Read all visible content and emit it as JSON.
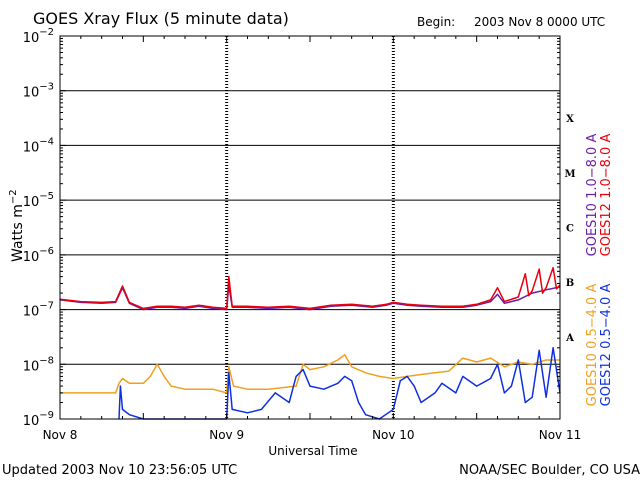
{
  "header": {
    "title": "GOES Xray Flux (5 minute data)",
    "begin_label": "Begin:",
    "begin_value": "2003 Nov 8 0000 UTC"
  },
  "footer": {
    "updated": "Updated 2003 Nov 10 23:56:05 UTC",
    "credit": "NOAA/SEC Boulder, CO USA"
  },
  "colors": {
    "goes10_long": "#6a1fa8",
    "goes12_long": "#e8000b",
    "goes10_short": "#f0a020",
    "goes12_short": "#1030e0",
    "grid": "#000000"
  },
  "chart_data": {
    "type": "line",
    "title": "GOES Xray Flux (5 minute data)",
    "xlabel": "Universal Time",
    "ylabel": "Watts m⁻²",
    "yscale": "log",
    "ylim": [
      1e-09,
      0.01
    ],
    "xlim": [
      0,
      72
    ],
    "x_unit": "hours since 2003 Nov 8 0000 UTC",
    "x_ticks": [
      {
        "x": 0,
        "label": "Nov 8"
      },
      {
        "x": 24,
        "label": "Nov 9"
      },
      {
        "x": 48,
        "label": "Nov 10"
      },
      {
        "x": 72,
        "label": "Nov 11"
      }
    ],
    "y_ticks": [
      {
        "exp": -2,
        "base": "10",
        "sup": "−2"
      },
      {
        "exp": -3,
        "base": "10",
        "sup": "−3"
      },
      {
        "exp": -4,
        "base": "10",
        "sup": "−4"
      },
      {
        "exp": -5,
        "base": "10",
        "sup": "−5"
      },
      {
        "exp": -6,
        "base": "10",
        "sup": "−6"
      },
      {
        "exp": -7,
        "base": "10",
        "sup": "−7"
      },
      {
        "exp": -8,
        "base": "10",
        "sup": "−8"
      },
      {
        "exp": -9,
        "base": "10",
        "sup": "−9"
      }
    ],
    "flare_classes": [
      {
        "label": "X",
        "exp": -3.5
      },
      {
        "label": "M",
        "exp": -4.5
      },
      {
        "label": "C",
        "exp": -5.5
      },
      {
        "label": "B",
        "exp": -6.5
      },
      {
        "label": "A",
        "exp": -7.5
      }
    ],
    "legend_right": [
      {
        "text": "GOES12 1.0−8.0 A",
        "color": "#e8000b"
      },
      {
        "text": "GOES10 1.0−8.0 A",
        "color": "#6a1fa8"
      },
      {
        "text": "GOES12 0.5−4.0 A",
        "color": "#1030e0"
      },
      {
        "text": "GOES10 0.5−4.0 A",
        "color": "#f0a020"
      }
    ],
    "series": [
      {
        "name": "GOES10 1.0-8.0 A",
        "color": "#6a1fa8",
        "points": [
          [
            0,
            1.5e-07
          ],
          [
            3,
            1.35e-07
          ],
          [
            6,
            1.3e-07
          ],
          [
            8,
            1.35e-07
          ],
          [
            9,
            2.5e-07
          ],
          [
            10,
            1.3e-07
          ],
          [
            12,
            1e-07
          ],
          [
            14,
            1.1e-07
          ],
          [
            16,
            1.1e-07
          ],
          [
            18,
            1.05e-07
          ],
          [
            20,
            1.15e-07
          ],
          [
            22,
            1.05e-07
          ],
          [
            24,
            1e-07
          ],
          [
            24.3,
            2.8e-07
          ],
          [
            24.8,
            1.1e-07
          ],
          [
            27,
            1.1e-07
          ],
          [
            30,
            1.05e-07
          ],
          [
            33,
            1.1e-07
          ],
          [
            36,
            1e-07
          ],
          [
            39,
            1.15e-07
          ],
          [
            42,
            1.2e-07
          ],
          [
            45,
            1.1e-07
          ],
          [
            47,
            1.2e-07
          ],
          [
            48,
            1.3e-07
          ],
          [
            50,
            1.2e-07
          ],
          [
            52,
            1.15e-07
          ],
          [
            55,
            1.1e-07
          ],
          [
            58,
            1.1e-07
          ],
          [
            60,
            1.2e-07
          ],
          [
            62,
            1.4e-07
          ],
          [
            63,
            1.9e-07
          ],
          [
            64,
            1.3e-07
          ],
          [
            66,
            1.5e-07
          ],
          [
            68,
            2e-07
          ],
          [
            70,
            2.3e-07
          ],
          [
            72,
            2.6e-07
          ]
        ]
      },
      {
        "name": "GOES12 1.0-8.0 A",
        "color": "#e8000b",
        "points": [
          [
            0,
            1.55e-07
          ],
          [
            3,
            1.4e-07
          ],
          [
            6,
            1.35e-07
          ],
          [
            8,
            1.4e-07
          ],
          [
            9,
            2.7e-07
          ],
          [
            10,
            1.35e-07
          ],
          [
            12,
            1.05e-07
          ],
          [
            14,
            1.15e-07
          ],
          [
            16,
            1.15e-07
          ],
          [
            18,
            1.1e-07
          ],
          [
            20,
            1.2e-07
          ],
          [
            22,
            1.1e-07
          ],
          [
            24,
            1.05e-07
          ],
          [
            24.3,
            4e-07
          ],
          [
            24.8,
            1.15e-07
          ],
          [
            27,
            1.15e-07
          ],
          [
            30,
            1.1e-07
          ],
          [
            33,
            1.15e-07
          ],
          [
            36,
            1.05e-07
          ],
          [
            39,
            1.2e-07
          ],
          [
            42,
            1.25e-07
          ],
          [
            45,
            1.15e-07
          ],
          [
            47,
            1.25e-07
          ],
          [
            48,
            1.35e-07
          ],
          [
            50,
            1.25e-07
          ],
          [
            52,
            1.2e-07
          ],
          [
            55,
            1.15e-07
          ],
          [
            58,
            1.15e-07
          ],
          [
            60,
            1.25e-07
          ],
          [
            62,
            1.5e-07
          ],
          [
            63,
            2.5e-07
          ],
          [
            64,
            1.4e-07
          ],
          [
            66,
            1.7e-07
          ],
          [
            67,
            4.5e-07
          ],
          [
            67.5,
            1.8e-07
          ],
          [
            68,
            2.2e-07
          ],
          [
            69,
            5.5e-07
          ],
          [
            69.5,
            2e-07
          ],
          [
            70,
            2.5e-07
          ],
          [
            71,
            5.8e-07
          ],
          [
            71.5,
            2.4e-07
          ],
          [
            72,
            2.8e-07
          ]
        ]
      },
      {
        "name": "GOES10 0.5-4.0 A",
        "color": "#f0a020",
        "points": [
          [
            0,
            3e-09
          ],
          [
            3,
            3e-09
          ],
          [
            6,
            3e-09
          ],
          [
            8,
            3e-09
          ],
          [
            8.5,
            4.5e-09
          ],
          [
            9,
            5.5e-09
          ],
          [
            10,
            4.5e-09
          ],
          [
            12,
            4.5e-09
          ],
          [
            13,
            6e-09
          ],
          [
            14,
            1e-08
          ],
          [
            15,
            6e-09
          ],
          [
            16,
            4e-09
          ],
          [
            18,
            3.5e-09
          ],
          [
            20,
            3.5e-09
          ],
          [
            22,
            3.5e-09
          ],
          [
            24,
            3e-09
          ],
          [
            24.3,
            9e-09
          ],
          [
            25,
            4e-09
          ],
          [
            27,
            3.5e-09
          ],
          [
            30,
            3.5e-09
          ],
          [
            34,
            4e-09
          ],
          [
            35,
            1e-08
          ],
          [
            36,
            8e-09
          ],
          [
            38,
            9e-09
          ],
          [
            40,
            1.2e-08
          ],
          [
            41,
            1.5e-08
          ],
          [
            42,
            9e-09
          ],
          [
            44,
            7e-09
          ],
          [
            46,
            6e-09
          ],
          [
            48,
            5.5e-09
          ],
          [
            50,
            6e-09
          ],
          [
            52,
            6.5e-09
          ],
          [
            54,
            7e-09
          ],
          [
            56,
            7.5e-09
          ],
          [
            58,
            1.3e-08
          ],
          [
            60,
            1.1e-08
          ],
          [
            62,
            1.3e-08
          ],
          [
            64,
            9e-09
          ],
          [
            66,
            1.1e-08
          ],
          [
            68,
            1e-08
          ],
          [
            70,
            1.2e-08
          ],
          [
            72,
            1.2e-08
          ]
        ]
      },
      {
        "name": "GOES12 0.5-4.0 A",
        "color": "#1030e0",
        "points": [
          [
            8.5,
            1e-09
          ],
          [
            8.7,
            4e-09
          ],
          [
            9,
            1.5e-09
          ],
          [
            10,
            1.2e-09
          ],
          [
            12,
            1e-09
          ],
          [
            15,
            1e-09
          ],
          [
            17,
            1e-09
          ],
          [
            24,
            1e-09
          ],
          [
            24.3,
            7e-09
          ],
          [
            24.8,
            1.5e-09
          ],
          [
            27,
            1.3e-09
          ],
          [
            29,
            1.5e-09
          ],
          [
            31,
            3e-09
          ],
          [
            33,
            2e-09
          ],
          [
            34,
            6e-09
          ],
          [
            35,
            8e-09
          ],
          [
            36,
            4e-09
          ],
          [
            38,
            3.5e-09
          ],
          [
            40,
            4.5e-09
          ],
          [
            41,
            6e-09
          ],
          [
            42,
            5e-09
          ],
          [
            43,
            2e-09
          ],
          [
            44,
            1.2e-09
          ],
          [
            46,
            1e-09
          ],
          [
            48,
            1.5e-09
          ],
          [
            49,
            5e-09
          ],
          [
            50,
            6e-09
          ],
          [
            51,
            4e-09
          ],
          [
            52,
            2e-09
          ],
          [
            54,
            3e-09
          ],
          [
            55,
            4.5e-09
          ],
          [
            57,
            3e-09
          ],
          [
            58,
            6e-09
          ],
          [
            60,
            4e-09
          ],
          [
            62,
            5.5e-09
          ],
          [
            63,
            1e-08
          ],
          [
            64,
            3e-09
          ],
          [
            65,
            4e-09
          ],
          [
            66,
            1.2e-08
          ],
          [
            67,
            2e-09
          ],
          [
            68,
            2.5e-09
          ],
          [
            69,
            1.8e-08
          ],
          [
            70,
            2.5e-09
          ],
          [
            71,
            2e-08
          ],
          [
            72,
            3e-09
          ]
        ]
      }
    ]
  }
}
